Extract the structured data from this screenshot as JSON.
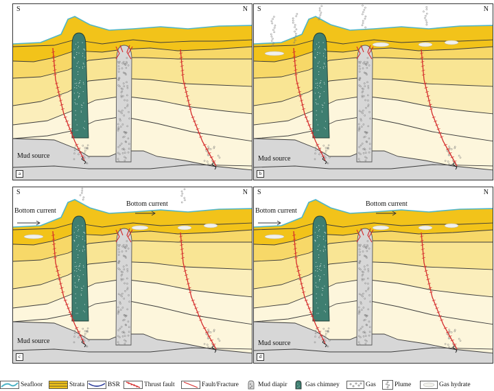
{
  "panels": [
    {
      "label": "a",
      "south": "S",
      "north": "N",
      "mud_source": "Mud source",
      "bottom_current_left": "",
      "bottom_current_mid": ""
    },
    {
      "label": "b",
      "south": "S",
      "north": "N",
      "mud_source": "Mud source",
      "bottom_current_left": "",
      "bottom_current_mid": ""
    },
    {
      "label": "c",
      "south": "S",
      "north": "N",
      "mud_source": "Mud source",
      "bottom_current_left": "Bottom current",
      "bottom_current_mid": "Bottom current"
    },
    {
      "label": "d",
      "south": "S",
      "north": "N",
      "mud_source": "Mud source",
      "bottom_current_left": "Bottom current",
      "bottom_current_mid": "Bottom current"
    }
  ],
  "legend": [
    {
      "icon": "seafloor-icon",
      "label": "Seafloor"
    },
    {
      "icon": "strata-icon",
      "label": "Strata"
    },
    {
      "icon": "bsr-icon",
      "label": "BSR"
    },
    {
      "icon": "thrust-fault-icon",
      "label": "Thrust fault"
    },
    {
      "icon": "fault-fracture-icon",
      "label": "Fault/Fracture"
    },
    {
      "icon": "mud-diapir-icon",
      "label": "Mud diapir"
    },
    {
      "icon": "gas-chimney-icon",
      "label": "Gas chimney"
    },
    {
      "icon": "gas-icon",
      "label": "Gas"
    },
    {
      "icon": "plume-icon",
      "label": "Plume"
    },
    {
      "icon": "gas-hydrate-icon",
      "label": "Gas hydrate"
    }
  ],
  "colors": {
    "seafloor": "#4fb5c7",
    "layer_1": "#f2c31a",
    "layer_2": "#f7d868",
    "layer_3": "#f9e594",
    "layer_4": "#fbeebb",
    "layer_5": "#fdf6dc",
    "mud": "#d7d7d7",
    "chimney": "#3e7e70",
    "fault": "#d42b2b",
    "line": "#3a3a3a"
  }
}
